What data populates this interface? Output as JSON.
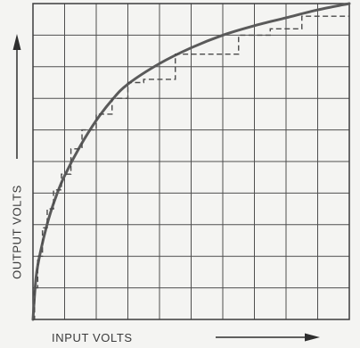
{
  "chart_data": {
    "type": "line",
    "xlabel": "INPUT VOLTS",
    "ylabel": "OUTPUT VOLTS",
    "grid": true,
    "tick_labels": false,
    "xlim": [
      0,
      10
    ],
    "ylim": [
      0,
      10
    ],
    "series": [
      {
        "style": "solid",
        "color": "#5a5a5a",
        "x": [
          0,
          0.1,
          0.25,
          0.5,
          0.75,
          1,
          1.5,
          2,
          2.5,
          3,
          4,
          5,
          6,
          7,
          8,
          9,
          10
        ],
        "y": [
          0,
          1.35,
          2.2,
          3.2,
          3.95,
          4.55,
          5.5,
          6.3,
          6.95,
          7.45,
          8.1,
          8.6,
          9.0,
          9.3,
          9.55,
          9.8,
          10.0
        ]
      },
      {
        "style": "dashed",
        "color": "#4a4a4a",
        "x": [
          0,
          0.05,
          0.05,
          0.15,
          0.15,
          0.3,
          0.3,
          0.45,
          0.45,
          0.65,
          0.65,
          0.9,
          0.9,
          1.2,
          1.2,
          1.55,
          1.55,
          2.0,
          2.0,
          2.5,
          2.5,
          3.0,
          3.0,
          3.5,
          3.5,
          4.5,
          4.5,
          5.5,
          5.5,
          6.5,
          6.5,
          7.5,
          7.5,
          8.5,
          8.5,
          10.0
        ],
        "y": [
          0,
          0,
          1.0,
          1.0,
          2.0,
          2.0,
          2.9,
          2.9,
          3.5,
          3.5,
          4.1,
          4.1,
          4.6,
          4.6,
          5.4,
          5.4,
          6.0,
          6.0,
          6.5,
          6.5,
          7.0,
          7.0,
          7.5,
          7.5,
          7.6,
          7.6,
          8.4,
          8.4,
          8.4,
          8.4,
          9.0,
          9.0,
          9.2,
          9.2,
          9.6,
          9.6
        ]
      }
    ]
  },
  "colors": {
    "background": "#f4f4f2",
    "grid": "#4f4f4f",
    "frame": "#3c3c3c",
    "arrow": "#2e2e2e"
  }
}
